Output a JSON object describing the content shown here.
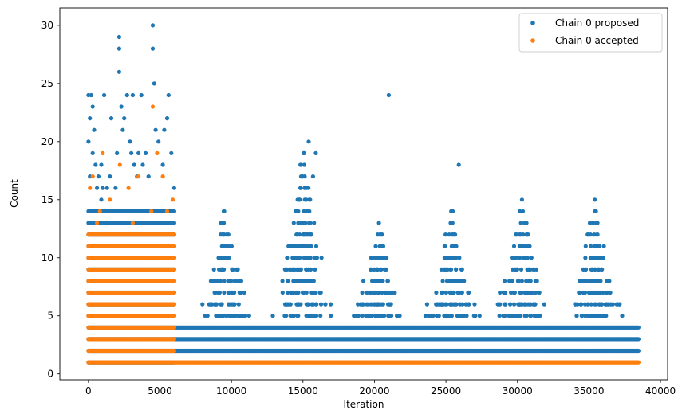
{
  "chart_data": {
    "type": "scatter",
    "title": "",
    "xlabel": "Iteration",
    "ylabel": "Count",
    "xlim": [
      -2000,
      40500
    ],
    "ylim": [
      -0.5,
      31.5
    ],
    "x_ticks": [
      0,
      5000,
      10000,
      15000,
      20000,
      25000,
      30000,
      35000,
      40000
    ],
    "y_ticks": [
      0,
      5,
      10,
      15,
      20,
      25,
      30
    ],
    "grid": false,
    "legend_position": "top-right",
    "series": [
      {
        "name": "Chain 0 proposed",
        "color": "#1f77b4",
        "bands": [
          {
            "y": 1,
            "x": [
              0,
              6000
            ]
          },
          {
            "y": 2,
            "x": [
              0,
              38500
            ]
          },
          {
            "y": 3,
            "x": [
              0,
              38500
            ]
          },
          {
            "y": 4,
            "x": [
              0,
              38500
            ]
          },
          {
            "y": 5,
            "x": [
              0,
              6000
            ]
          },
          {
            "y": 6,
            "x": [
              0,
              6000
            ]
          },
          {
            "y": 7,
            "x": [
              0,
              6000
            ]
          },
          {
            "y": 8,
            "x": [
              0,
              6000
            ]
          },
          {
            "y": 9,
            "x": [
              0,
              6000
            ]
          },
          {
            "y": 10,
            "x": [
              0,
              6000
            ]
          },
          {
            "y": 11,
            "x": [
              0,
              6000
            ]
          },
          {
            "y": 12,
            "x": [
              0,
              6000
            ]
          },
          {
            "y": 13,
            "x": [
              0,
              6000
            ]
          },
          {
            "y": 14,
            "x": [
              0,
              6000
            ]
          }
        ],
        "peaks": [
          {
            "center": 9500,
            "height": 14
          },
          {
            "center": 15000,
            "height": 20
          },
          {
            "center": 20300,
            "height": 13
          },
          {
            "center": 25400,
            "height": 14
          },
          {
            "center": 30300,
            "height": 15
          },
          {
            "center": 35400,
            "height": 15
          }
        ],
        "points": [
          [
            0,
            24
          ],
          [
            200,
            24
          ],
          [
            300,
            23
          ],
          [
            100,
            22
          ],
          [
            400,
            21
          ],
          [
            0,
            20
          ],
          [
            300,
            19
          ],
          [
            500,
            18
          ],
          [
            100,
            17
          ],
          [
            600,
            16
          ],
          [
            700,
            17
          ],
          [
            900,
            15
          ],
          [
            1000,
            16
          ],
          [
            1100,
            24
          ],
          [
            1300,
            16
          ],
          [
            1500,
            17
          ],
          [
            1600,
            22
          ],
          [
            1900,
            16
          ],
          [
            2000,
            19
          ],
          [
            2150,
            29
          ],
          [
            2150,
            28
          ],
          [
            2150,
            26
          ],
          [
            2300,
            23
          ],
          [
            2400,
            21
          ],
          [
            2500,
            22
          ],
          [
            2700,
            24
          ],
          [
            2900,
            20
          ],
          [
            3000,
            19
          ],
          [
            3100,
            24
          ],
          [
            3200,
            18
          ],
          [
            3400,
            17
          ],
          [
            3500,
            19
          ],
          [
            3700,
            24
          ],
          [
            3800,
            18
          ],
          [
            4000,
            19
          ],
          [
            4200,
            17
          ],
          [
            4500,
            30
          ],
          [
            4500,
            28
          ],
          [
            4600,
            25
          ],
          [
            4700,
            21
          ],
          [
            4900,
            20
          ],
          [
            5200,
            18
          ],
          [
            5300,
            21
          ],
          [
            5500,
            22
          ],
          [
            5600,
            24
          ],
          [
            5800,
            19
          ],
          [
            6000,
            16
          ],
          [
            900,
            18
          ],
          [
            21000,
            24
          ],
          [
            25900,
            18
          ],
          [
            15500,
            15
          ],
          [
            15700,
            17
          ],
          [
            15900,
            19
          ],
          [
            15400,
            20
          ]
        ]
      },
      {
        "name": "Chain 0 accepted",
        "color": "#ff7f0e",
        "bands": [
          {
            "y": 1,
            "x": [
              0,
              38500
            ]
          },
          {
            "y": 2,
            "x": [
              0,
              6000
            ]
          },
          {
            "y": 3,
            "x": [
              0,
              6000
            ]
          },
          {
            "y": 4,
            "x": [
              0,
              6000
            ]
          },
          {
            "y": 5,
            "x": [
              0,
              6000
            ]
          },
          {
            "y": 6,
            "x": [
              0,
              6000
            ]
          },
          {
            "y": 7,
            "x": [
              0,
              6000
            ]
          },
          {
            "y": 8,
            "x": [
              0,
              6000
            ]
          },
          {
            "y": 9,
            "x": [
              0,
              6000
            ]
          },
          {
            "y": 10,
            "x": [
              0,
              6000
            ]
          },
          {
            "y": 11,
            "x": [
              0,
              6000
            ]
          },
          {
            "y": 12,
            "x": [
              0,
              6000
            ]
          }
        ],
        "points": [
          [
            4500,
            23
          ],
          [
            1000,
            19
          ],
          [
            4800,
            19
          ],
          [
            2200,
            18
          ],
          [
            3500,
            17
          ],
          [
            300,
            17
          ],
          [
            5200,
            17
          ],
          [
            5900,
            15
          ],
          [
            1500,
            15
          ],
          [
            800,
            14
          ],
          [
            2800,
            16
          ],
          [
            4400,
            14
          ],
          [
            100,
            16
          ],
          [
            3100,
            13
          ],
          [
            600,
            13
          ],
          [
            5500,
            14
          ]
        ]
      }
    ]
  }
}
